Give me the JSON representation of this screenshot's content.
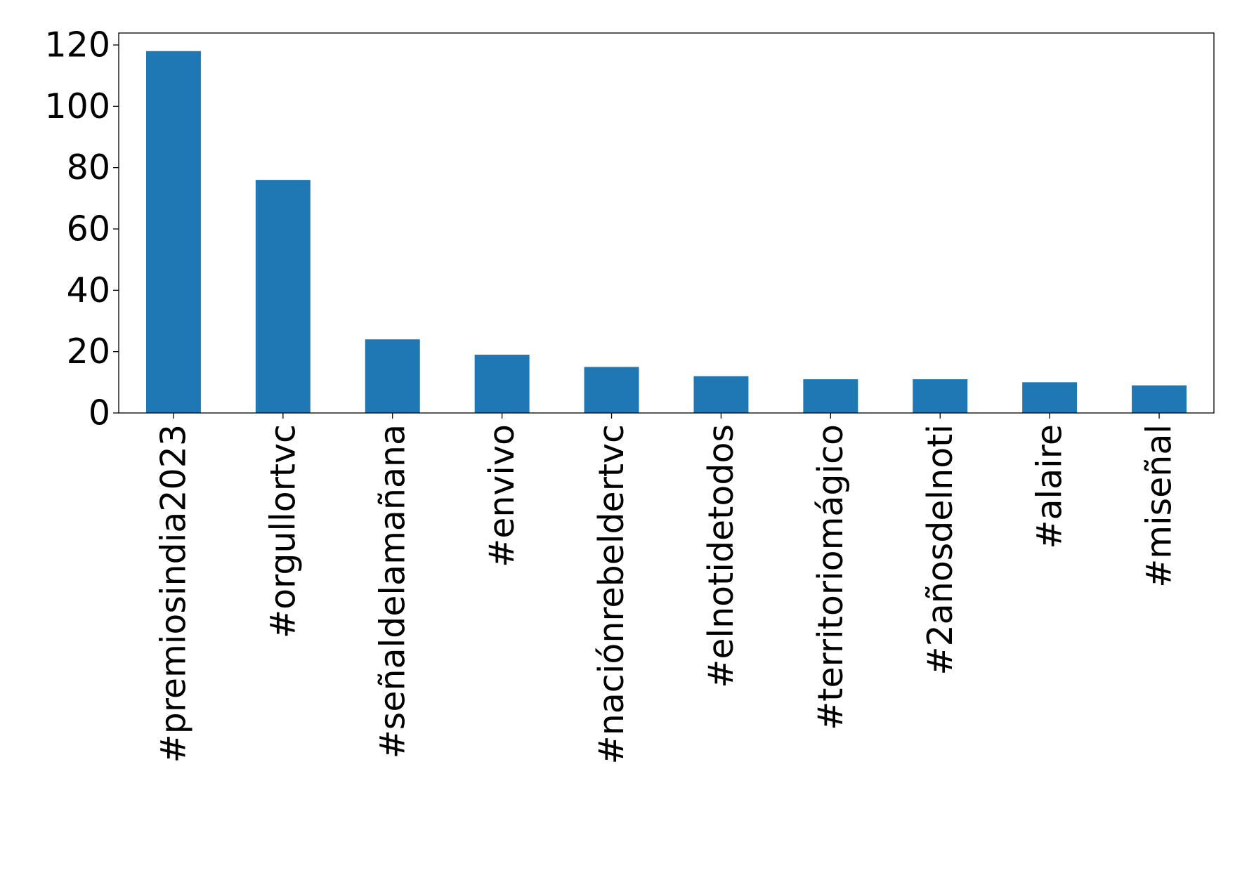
{
  "chart_data": {
    "type": "bar",
    "categories": [
      "#premiosindia2023",
      "#orgullortvc",
      "#señaldelamañana",
      "#envivo",
      "#naciónrebeldertvc",
      "#elnotidetodos",
      "#territoriomágico",
      "#2añosdelnoti",
      "#alaire",
      "#miseñal"
    ],
    "values": [
      118,
      76,
      24,
      19,
      15,
      12,
      11,
      11,
      10,
      9
    ],
    "color": "#1f77b4",
    "ylim": [
      0,
      123.9
    ],
    "yticks": [
      0,
      20,
      40,
      60,
      80,
      100,
      120
    ],
    "grid": false
  }
}
